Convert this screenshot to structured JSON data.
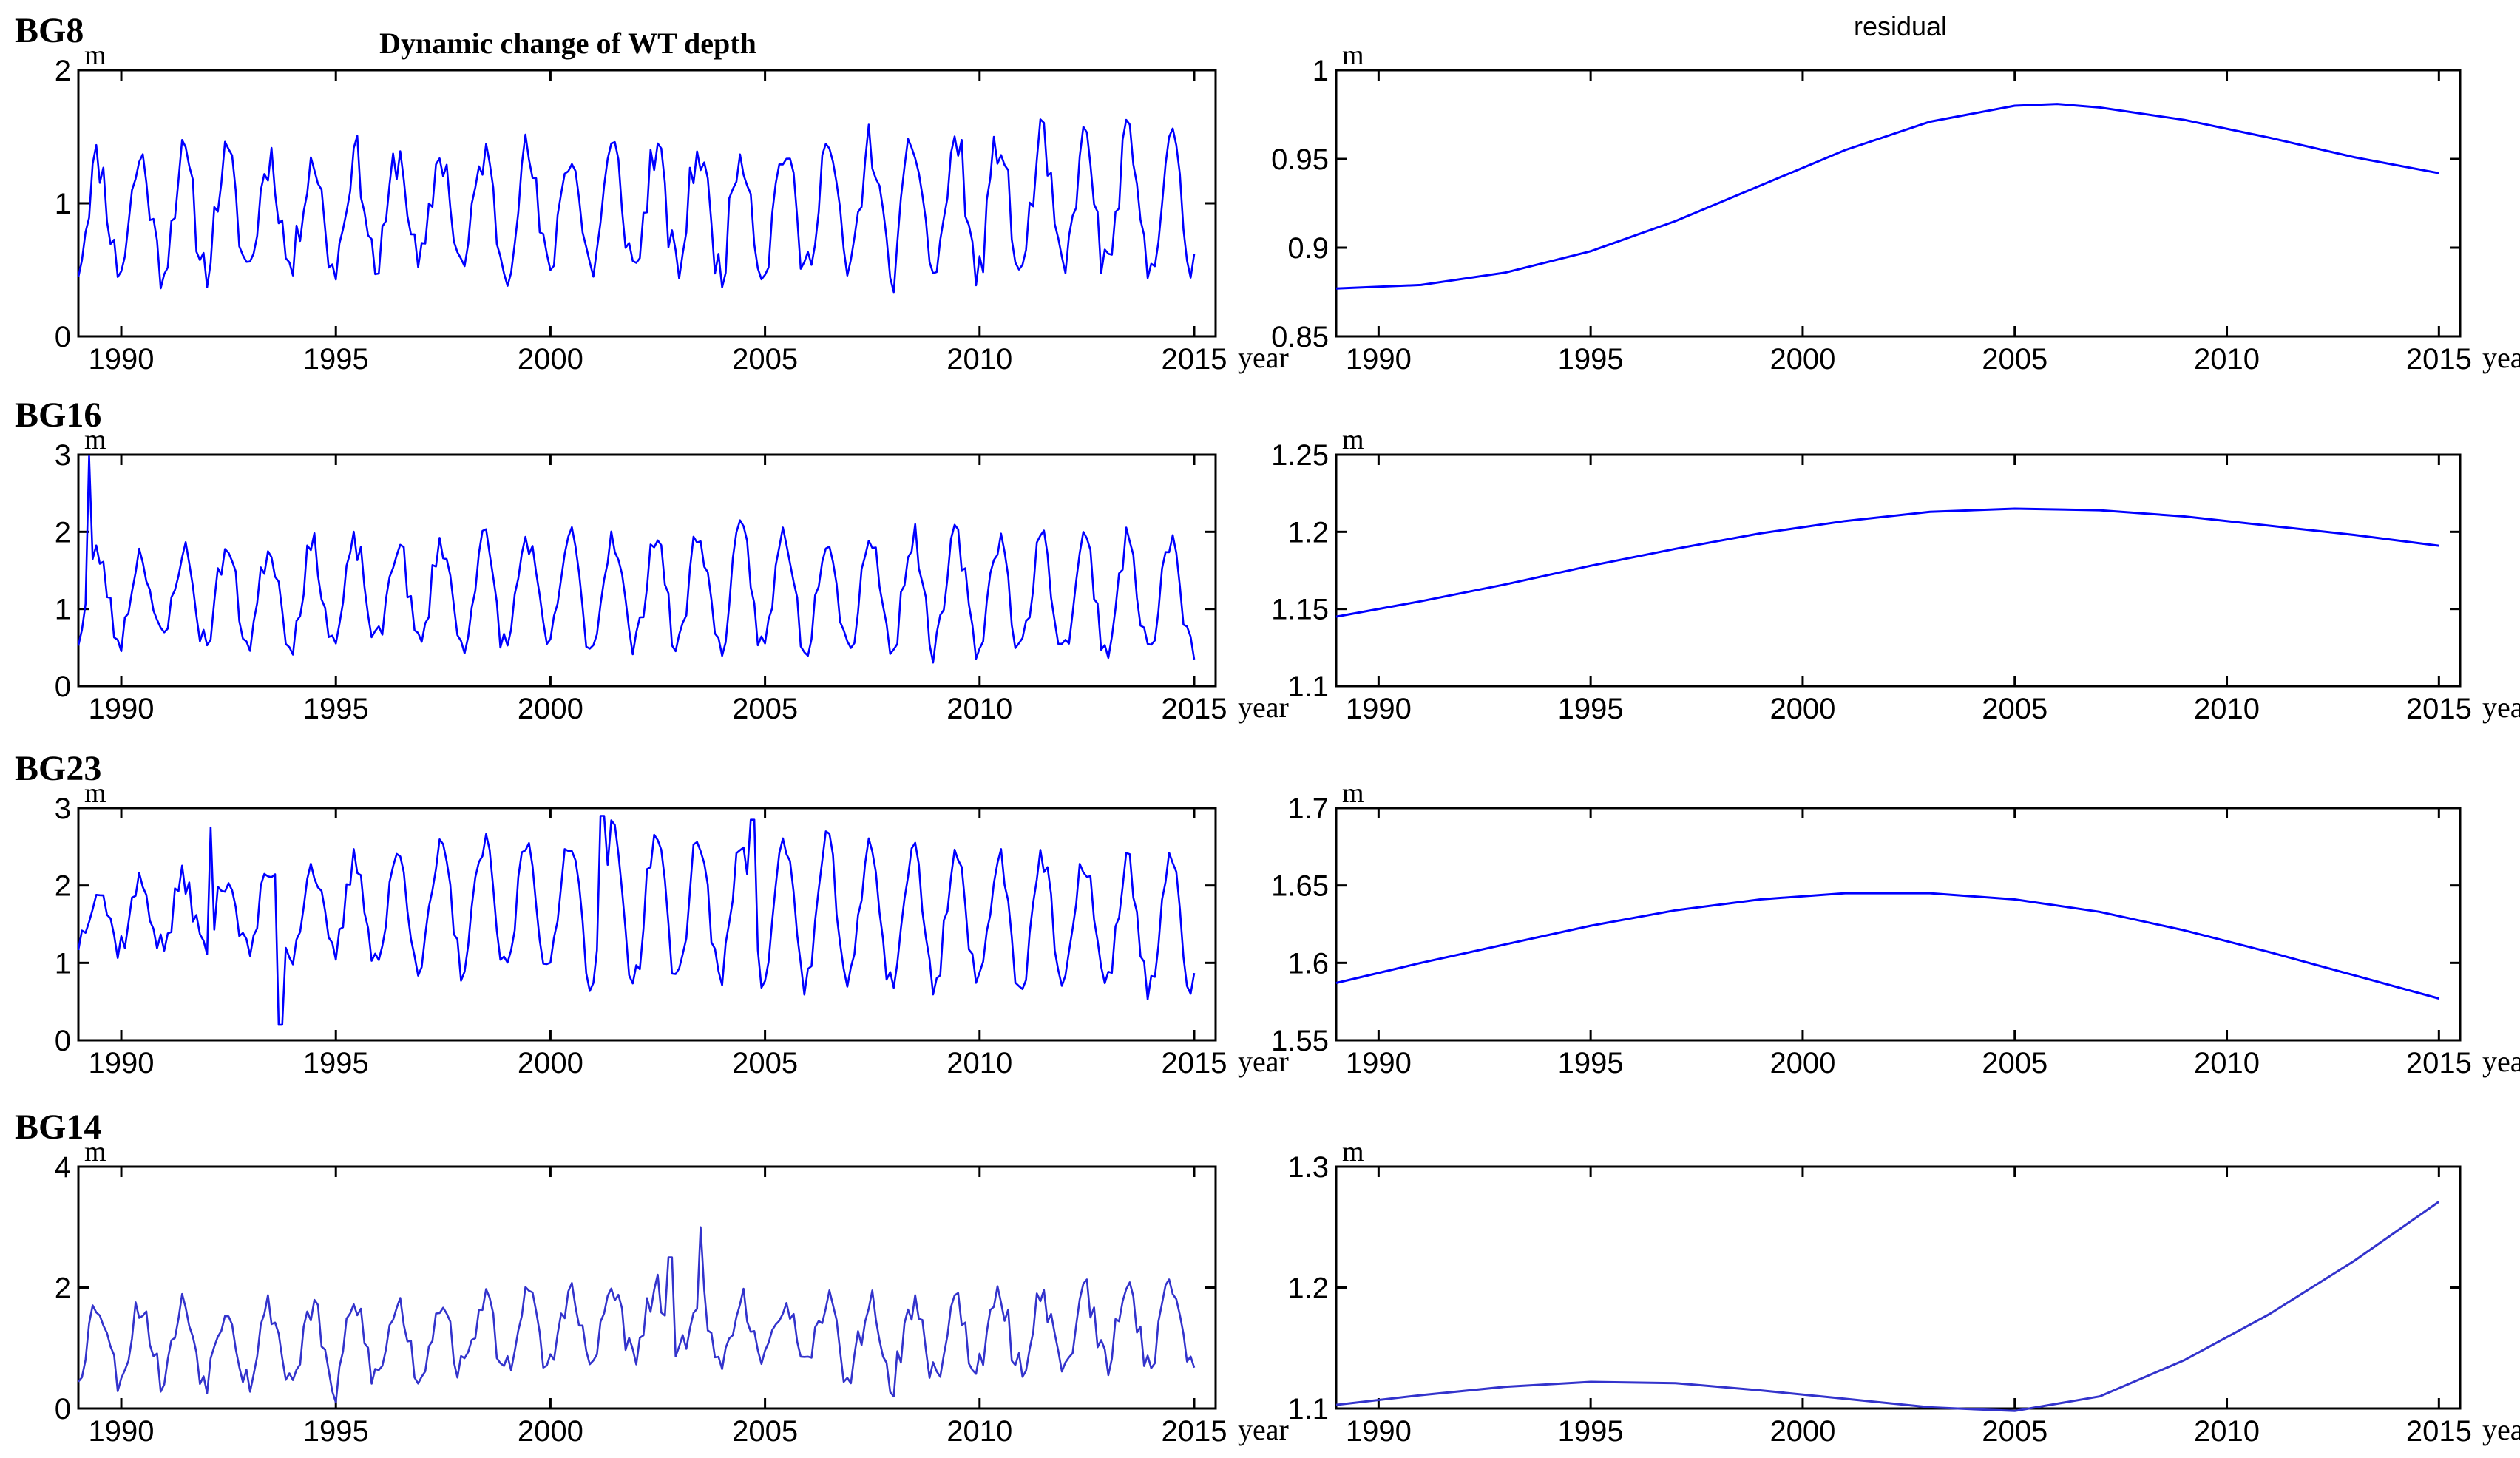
{
  "figure": {
    "left_title": "Dynamic change of WT depth",
    "right_title": "residual"
  },
  "chart_data": [
    {
      "type": "line",
      "panel": "raw",
      "well": "BG8",
      "title": "Dynamic change of WT depth",
      "ylabel": "m",
      "xlabel": "year",
      "xlim": [
        1989,
        2015.5
      ],
      "ylim": [
        0,
        2
      ],
      "xticks": [
        1990,
        1995,
        2000,
        2005,
        2010,
        2015
      ],
      "yticks": [
        0,
        1,
        2
      ],
      "series": [
        {
          "name": "WT depth",
          "color": "#0000ff",
          "x": [],
          "y": []
        }
      ],
      "gen": {
        "mean": [
          [
            1989,
            0.92
          ],
          [
            2015,
            0.98
          ]
        ],
        "amp": [
          [
            1989,
            0.4
          ],
          [
            2003,
            0.44
          ],
          [
            2010,
            0.5
          ],
          [
            2015,
            0.48
          ]
        ],
        "seed": 11,
        "noise": 0.09,
        "spikes": []
      }
    },
    {
      "type": "line",
      "panel": "raw",
      "well": "BG16",
      "ylabel": "m",
      "xlabel": "year",
      "xlim": [
        1989,
        2015.5
      ],
      "ylim": [
        0,
        3
      ],
      "xticks": [
        1990,
        1995,
        2000,
        2005,
        2010,
        2015
      ],
      "yticks": [
        0,
        1,
        2,
        3
      ],
      "series": [
        {
          "name": "WT depth",
          "color": "#0000ff",
          "x": [],
          "y": []
        }
      ],
      "gen": {
        "mean": [
          [
            1989,
            1.15
          ],
          [
            2005,
            1.25
          ],
          [
            2015,
            1.15
          ]
        ],
        "amp": [
          [
            1989,
            0.55
          ],
          [
            2003,
            0.75
          ],
          [
            2015,
            0.7
          ]
        ],
        "seed": 23,
        "noise": 0.1,
        "spikes": [
          [
            1989.25,
            3.0
          ]
        ]
      }
    },
    {
      "type": "line",
      "panel": "raw",
      "well": "BG23",
      "ylabel": "m",
      "xlabel": "year",
      "xlim": [
        1989,
        2015.5
      ],
      "ylim": [
        0,
        3
      ],
      "xticks": [
        1990,
        1995,
        2000,
        2005,
        2010,
        2015
      ],
      "yticks": [
        0,
        1,
        2,
        3
      ],
      "series": [
        {
          "name": "WT depth",
          "color": "#0000ff",
          "x": [],
          "y": []
        }
      ],
      "gen": {
        "mean": [
          [
            1989,
            1.6
          ],
          [
            2001,
            1.75
          ],
          [
            2015,
            1.45
          ]
        ],
        "amp": [
          [
            1989,
            0.35
          ],
          [
            1994,
            0.55
          ],
          [
            2001,
            0.95
          ],
          [
            2015,
            0.8
          ]
        ],
        "seed": 37,
        "noise": 0.1,
        "spikes": [
          [
            1993.7,
            0.2
          ],
          [
            1992.1,
            2.75
          ],
          [
            2001.2,
            2.9
          ],
          [
            2004.7,
            2.85
          ]
        ]
      }
    },
    {
      "type": "line",
      "panel": "raw",
      "well": "BG14",
      "ylabel": "m",
      "xlabel": "year",
      "xlim": [
        1989,
        2015.5
      ],
      "ylim": [
        0,
        4
      ],
      "xticks": [
        1990,
        1995,
        2000,
        2005,
        2010,
        2015
      ],
      "yticks": [
        0,
        2,
        4
      ],
      "series": [
        {
          "name": "WT depth",
          "color": "#3333cc",
          "x": [],
          "y": []
        }
      ],
      "gen": {
        "mean": [
          [
            1989,
            1.15
          ],
          [
            1995,
            1.05
          ],
          [
            2002,
            1.4
          ],
          [
            2008,
            1.1
          ],
          [
            2015,
            1.45
          ]
        ],
        "amp": [
          [
            1989,
            0.6
          ],
          [
            2015,
            0.6
          ]
        ],
        "seed": 53,
        "noise": 0.14,
        "spikes": [
          [
            2002.8,
            2.5
          ],
          [
            2003.5,
            3.0
          ],
          [
            1995.0,
            0.1
          ],
          [
            2008.0,
            0.2
          ]
        ]
      }
    },
    {
      "type": "line",
      "panel": "residual",
      "well": "BG8",
      "title": "residual",
      "ylabel": "m",
      "xlabel": "year",
      "xlim": [
        1989,
        2015.5
      ],
      "ylim": [
        0.85,
        1
      ],
      "xticks": [
        1990,
        1995,
        2000,
        2005,
        2010,
        2015
      ],
      "yticks": [
        "0.85",
        "0.9",
        "0.95",
        "1"
      ],
      "series": [
        {
          "name": "residual",
          "color": "#0000ff",
          "x": [
            1989,
            1991,
            1993,
            1995,
            1997,
            1999,
            2001,
            2003,
            2005,
            2006,
            2007,
            2009,
            2011,
            2013,
            2015
          ],
          "y": [
            0.877,
            0.879,
            0.886,
            0.898,
            0.915,
            0.935,
            0.955,
            0.971,
            0.98,
            0.981,
            0.979,
            0.972,
            0.962,
            0.951,
            0.942
          ]
        }
      ]
    },
    {
      "type": "line",
      "panel": "residual",
      "well": "BG16",
      "ylabel": "m",
      "xlabel": "year",
      "xlim": [
        1989,
        2015.5
      ],
      "ylim": [
        1.1,
        1.25
      ],
      "xticks": [
        1990,
        1995,
        2000,
        2005,
        2010,
        2015
      ],
      "yticks": [
        "1.1",
        "1.15",
        "1.2",
        "1.25"
      ],
      "series": [
        {
          "name": "residual",
          "color": "#0000ff",
          "x": [
            1989,
            1991,
            1993,
            1995,
            1997,
            1999,
            2001,
            2003,
            2005,
            2007,
            2009,
            2011,
            2013,
            2015
          ],
          "y": [
            1.145,
            1.155,
            1.166,
            1.178,
            1.189,
            1.199,
            1.207,
            1.213,
            1.215,
            1.214,
            1.21,
            1.204,
            1.198,
            1.191
          ]
        }
      ]
    },
    {
      "type": "line",
      "panel": "residual",
      "well": "BG23",
      "ylabel": "m",
      "xlabel": "year",
      "xlim": [
        1989,
        2015.5
      ],
      "ylim": [
        1.55,
        1.7
      ],
      "xticks": [
        1990,
        1995,
        2000,
        2005,
        2010,
        2015
      ],
      "yticks": [
        "1.55",
        "1.6",
        "1.65",
        "1.7"
      ],
      "series": [
        {
          "name": "residual",
          "color": "#0000ff",
          "x": [
            1989,
            1991,
            1993,
            1995,
            1997,
            1999,
            2001,
            2003,
            2005,
            2007,
            2009,
            2011,
            2013,
            2015
          ],
          "y": [
            1.587,
            1.6,
            1.612,
            1.624,
            1.634,
            1.641,
            1.645,
            1.645,
            1.641,
            1.633,
            1.621,
            1.607,
            1.592,
            1.577
          ]
        }
      ]
    },
    {
      "type": "line",
      "panel": "residual",
      "well": "BG14",
      "ylabel": "m",
      "xlabel": "year",
      "xlim": [
        1989,
        2015.5
      ],
      "ylim": [
        1.1,
        1.3
      ],
      "xticks": [
        1990,
        1995,
        2000,
        2005,
        2010,
        2015
      ],
      "yticks": [
        "1.1",
        "1.2",
        "1.3"
      ],
      "series": [
        {
          "name": "residual",
          "color": "#3333cc",
          "x": [
            1989,
            1991,
            1993,
            1995,
            1997,
            1999,
            2001,
            2003,
            2005,
            2007,
            2009,
            2011,
            2013,
            2015
          ],
          "y": [
            1.103,
            1.111,
            1.118,
            1.122,
            1.121,
            1.115,
            1.108,
            1.101,
            1.098,
            1.11,
            1.14,
            1.178,
            1.222,
            1.271
          ]
        }
      ]
    }
  ]
}
